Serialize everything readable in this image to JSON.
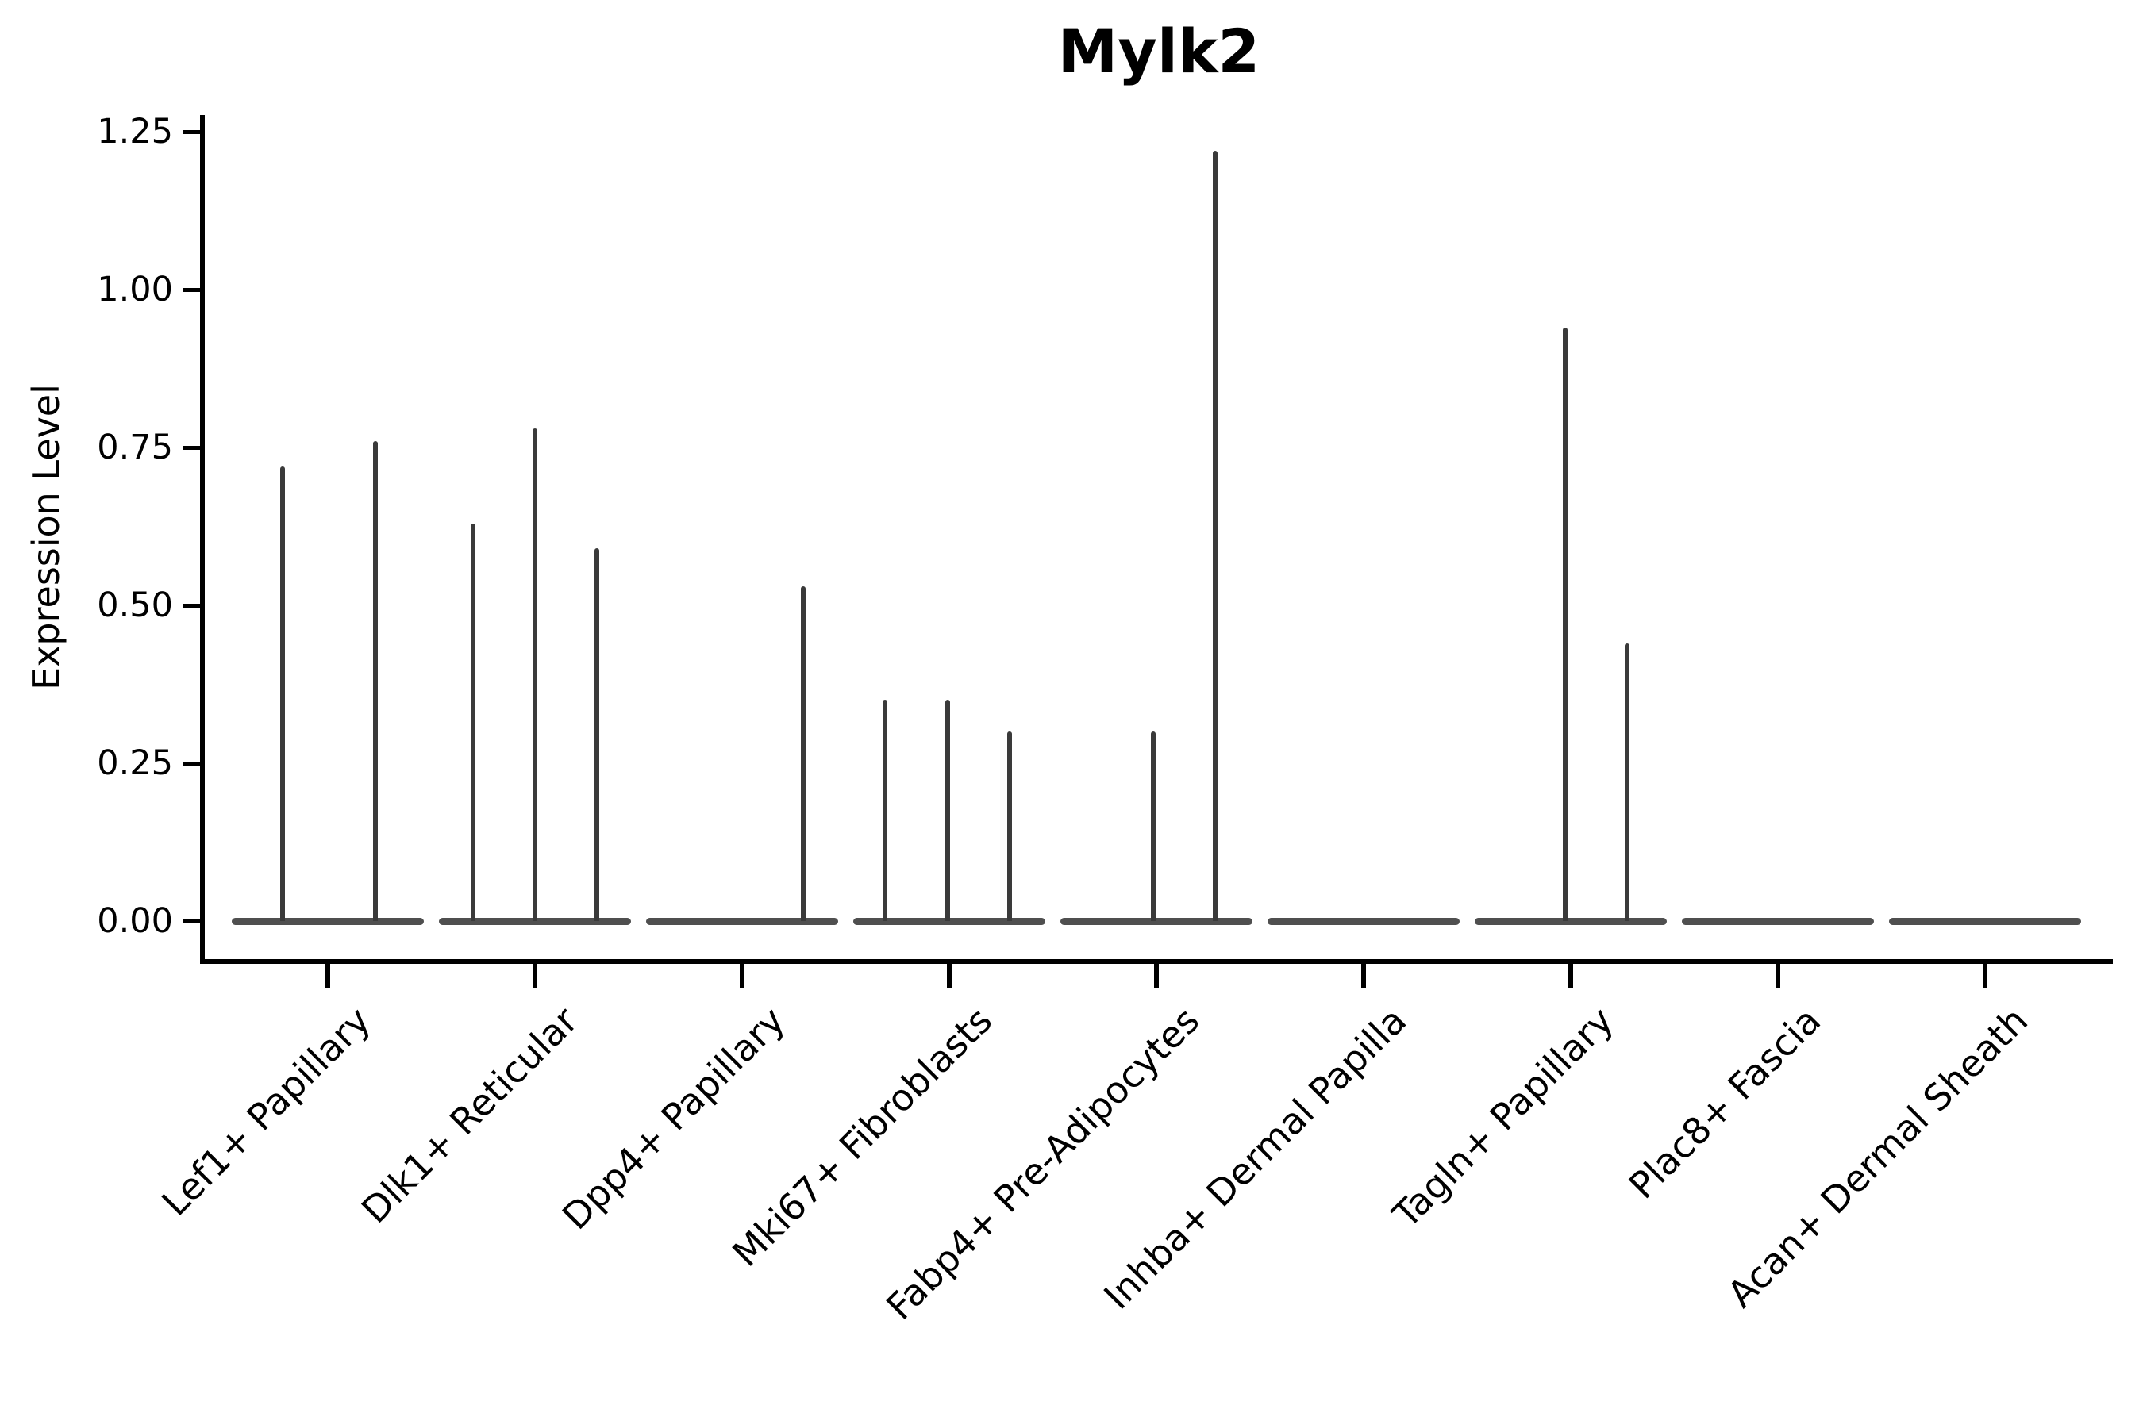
{
  "title": "Mylk2",
  "y_axis": {
    "label": "Expression Level",
    "tick_labels": [
      "0.00",
      "0.25",
      "0.50",
      "0.75",
      "1.00",
      "1.25"
    ]
  },
  "colors": {
    "axis": "#000000",
    "violin_spike": "#3a3a3a",
    "violin_baseline": "#4f4f4f",
    "background": "#ffffff"
  },
  "chart_data": {
    "type": "violin",
    "title": "Mylk2",
    "ylabel": "Expression Level",
    "ylim": [
      -0.06,
      1.276
    ],
    "yticks": [
      0,
      0.25,
      0.5,
      0.75,
      1,
      1.25
    ],
    "grid": false,
    "legend": "none",
    "xtick_rotation": 45,
    "categories": [
      "Lef1+ Papillary",
      "Dlk1+ Reticular",
      "Dpp4+ Papillary",
      "Mki67+ Fibroblasts",
      "Fabp4+ Pre-Adipocytes",
      "Inhba+ Dermal Papilla",
      "Tagln+ Papillary",
      "Plac8+ Fascia",
      "Acan+ Dermal Sheath"
    ],
    "series_note": "Each category shows flattened violins (expression mostly 0) with thin peaks; dx_frac is the peak's horizontal offset within the category slot (fraction of slot width), max is the peak expression value.",
    "groups": [
      {
        "category": "Lef1+ Papillary",
        "spikes": [
          {
            "dx_frac": -0.218,
            "max": 0.72
          },
          {
            "dx_frac": 0.23,
            "max": 0.76
          }
        ]
      },
      {
        "category": "Dlk1+ Reticular",
        "spikes": [
          {
            "dx_frac": -0.299,
            "max": 0.63
          },
          {
            "dx_frac": 0.0,
            "max": 0.78
          },
          {
            "dx_frac": 0.299,
            "max": 0.59
          }
        ]
      },
      {
        "category": "Dpp4+ Papillary",
        "spikes": [
          {
            "dx_frac": 0.295,
            "max": 0.53
          }
        ]
      },
      {
        "category": "Mki67+ Fibroblasts",
        "spikes": [
          {
            "dx_frac": -0.31,
            "max": 0.35
          },
          {
            "dx_frac": -0.008,
            "max": 0.35
          },
          {
            "dx_frac": 0.291,
            "max": 0.3
          }
        ]
      },
      {
        "category": "Fabp4+ Pre-Adipocytes",
        "spikes": [
          {
            "dx_frac": -0.015,
            "max": 0.3
          },
          {
            "dx_frac": 0.284,
            "max": 1.22
          }
        ]
      },
      {
        "category": "Inhba+ Dermal Papilla",
        "spikes": []
      },
      {
        "category": "Tagln+ Papillary",
        "spikes": [
          {
            "dx_frac": -0.027,
            "max": 0.94
          },
          {
            "dx_frac": 0.272,
            "max": 0.44
          }
        ]
      },
      {
        "category": "Plac8+ Fascia",
        "spikes": []
      },
      {
        "category": "Acan+ Dermal Sheath",
        "spikes": []
      }
    ]
  }
}
